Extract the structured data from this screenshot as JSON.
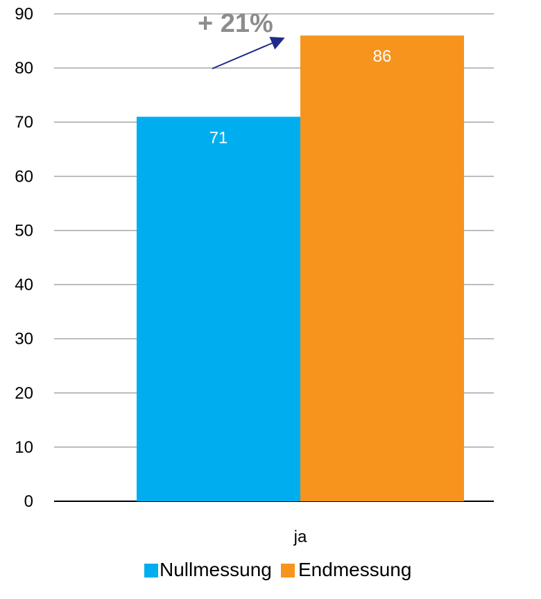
{
  "chart_data": {
    "type": "bar",
    "categories": [
      "ja"
    ],
    "series": [
      {
        "name": "Nullmessung",
        "values": [
          71
        ],
        "color": "#00aeef"
      },
      {
        "name": "Endmessung",
        "values": [
          86
        ],
        "color": "#f7941d"
      }
    ],
    "ylim": [
      0,
      90
    ],
    "yticks": [
      0,
      10,
      20,
      30,
      40,
      50,
      60,
      70,
      80,
      90
    ],
    "grid": true,
    "legend_position": "bottom",
    "annotation": {
      "text": "+ 21%",
      "color": "#8c8c8c",
      "arrow_color": "#1f2a8a"
    },
    "data_labels": [
      "71",
      "86"
    ]
  }
}
